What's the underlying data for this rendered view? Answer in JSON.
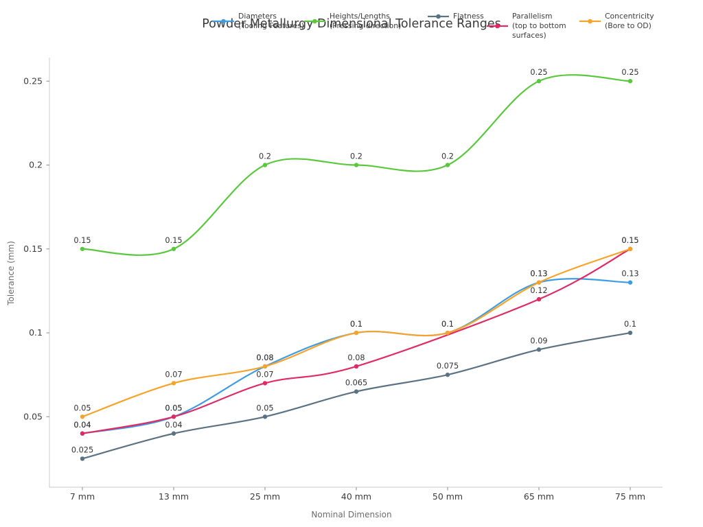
{
  "chart_data": {
    "type": "line",
    "title": "Powder Metallurgy Dimensional Tolerance Ranges",
    "xlabel": "Nominal Dimension",
    "ylabel": "Tolerance (mm)",
    "categories": [
      "7 mm",
      "13 mm",
      "25 mm",
      "40 mm",
      "50 mm",
      "65 mm",
      "75 mm"
    ],
    "y_ticks": [
      {
        "value": 0.05,
        "label": "0.05"
      },
      {
        "value": 0.1,
        "label": "0.1"
      },
      {
        "value": 0.15,
        "label": "0.15"
      },
      {
        "value": 0.2,
        "label": "0.2"
      },
      {
        "value": 0.25,
        "label": "0.25"
      }
    ],
    "ylim": [
      0.008,
      0.264
    ],
    "grid": false,
    "legend_position": "top",
    "line_style": "smooth-spline",
    "marker": "circle",
    "series": [
      {
        "id": "diameters",
        "name": "Diameters (Tooling Features)",
        "legend_lines": [
          "Diameters",
          "(Tooling Features)"
        ],
        "color": "#3d9ce1",
        "values": [
          0.04,
          0.05,
          0.08,
          0.1,
          0.1,
          0.13,
          0.13
        ],
        "point_labels": [
          "0.04",
          "0.05",
          "0.08",
          "0.1",
          "0.1",
          "0.13",
          "0.13"
        ]
      },
      {
        "id": "heights-lengths",
        "name": "Heights/Lengths (Pressing direction)",
        "legend_lines": [
          "Heights/Lengths",
          "(Pressing direction)"
        ],
        "color": "#5ac83c",
        "values": [
          0.15,
          0.15,
          0.2,
          0.2,
          0.2,
          0.25,
          0.25
        ],
        "point_labels": [
          "0.15",
          "0.15",
          "0.2",
          "0.2",
          "0.2",
          "0.25",
          "0.25"
        ]
      },
      {
        "id": "flatness",
        "name": "Flatness",
        "legend_lines": [
          "Flatness"
        ],
        "color": "#5a7282",
        "values": [
          0.025,
          0.04,
          0.05,
          0.065,
          0.075,
          0.09,
          0.1
        ],
        "point_labels": [
          "0.025",
          "0.04",
          "0.05",
          "0.065",
          "0.075",
          "0.09",
          "0.1"
        ]
      },
      {
        "id": "parallelism",
        "name": "Parallelism (top to bottom surfaces)",
        "legend_lines": [
          "Parallelism",
          "(top to bottom",
          "surfaces)"
        ],
        "color": "#e02a63",
        "values": [
          0.04,
          0.05,
          0.07,
          0.08,
          null,
          0.12,
          0.15
        ],
        "point_labels": [
          "0.04",
          "0.05",
          "0.07",
          "0.08",
          "",
          "0.12",
          "0.15"
        ]
      },
      {
        "id": "concentricity",
        "name": "Concentricity (Bore to OD)",
        "legend_lines": [
          "Concentricity",
          "(Bore to OD)"
        ],
        "color": "#f7a229",
        "values": [
          0.05,
          0.07,
          0.08,
          0.1,
          0.1,
          0.13,
          0.15
        ],
        "point_labels": [
          "0.05",
          "0.07",
          "0.08",
          "0.1",
          "0.1",
          "0.13",
          "0.15"
        ]
      }
    ]
  }
}
